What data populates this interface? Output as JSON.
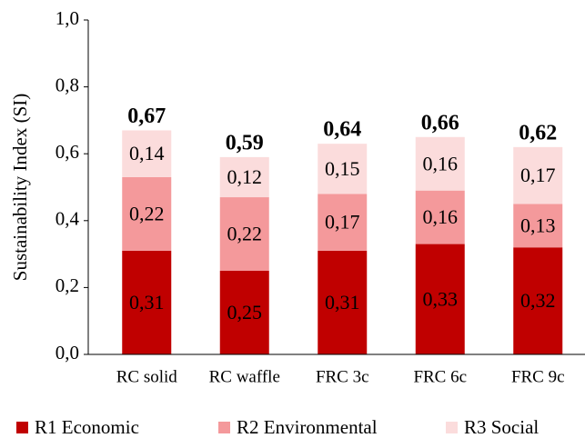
{
  "chart_data": {
    "type": "stacked-bar",
    "y_label": "Sustainability Index (SI)",
    "categories": [
      "RC solid",
      "RC waffle",
      "FRC 3c",
      "FRC 6c",
      "FRC 9c"
    ],
    "series": [
      {
        "name": "R1 Economic",
        "color": "#c00000",
        "values": [
          0.31,
          0.25,
          0.31,
          0.33,
          0.32
        ],
        "value_labels": [
          "0,31",
          "0,25",
          "0,31",
          "0,33",
          "0,32"
        ]
      },
      {
        "name": "R2 Environmental",
        "color": "#f4999b",
        "values": [
          0.22,
          0.22,
          0.17,
          0.16,
          0.13
        ],
        "value_labels": [
          "0,22",
          "0,22",
          "0,17",
          "0,16",
          "0,13"
        ]
      },
      {
        "name": "R3 Social",
        "color": "#fbdcdc",
        "values": [
          0.14,
          0.12,
          0.15,
          0.16,
          0.17
        ],
        "value_labels": [
          "0,14",
          "0,12",
          "0,15",
          "0,16",
          "0,17"
        ]
      }
    ],
    "totals": [
      0.67,
      0.59,
      0.64,
      0.66,
      0.62
    ],
    "total_labels": [
      "0,67",
      "0,59",
      "0,64",
      "0,66",
      "0,62"
    ],
    "ylim": [
      0,
      1
    ],
    "yticks": [
      {
        "value": 0,
        "label": "0,0"
      },
      {
        "value": 0.2,
        "label": "0,2"
      },
      {
        "value": 0.4,
        "label": "0,4"
      },
      {
        "value": 0.6,
        "label": "0,6"
      },
      {
        "value": 0.8,
        "label": "0,8"
      },
      {
        "value": 1,
        "label": "1,0"
      }
    ],
    "legend": "bottom"
  }
}
